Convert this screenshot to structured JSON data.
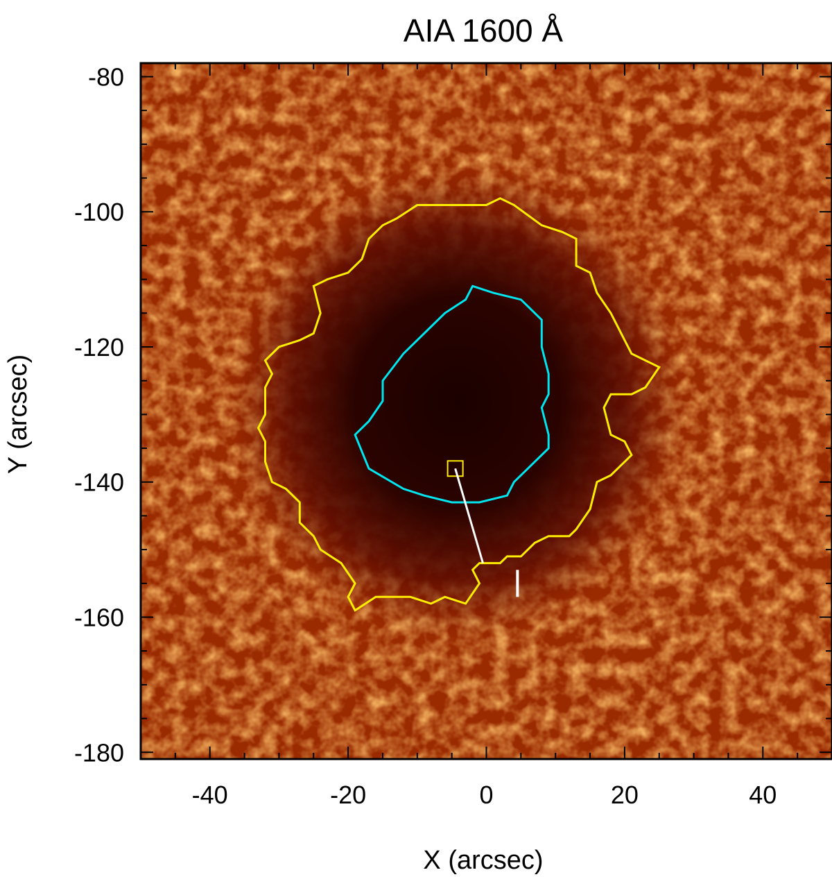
{
  "chart_data": {
    "type": "heatmap",
    "title": "AIA 1600 Å",
    "xlabel": "X (arcsec)",
    "ylabel": "Y (arcsec)",
    "xlim": [
      -50,
      50
    ],
    "ylim": [
      -181,
      -78
    ],
    "x_ticks": [
      -40,
      -20,
      0,
      20,
      40
    ],
    "y_ticks": [
      -80,
      -100,
      -120,
      -140,
      -160,
      -180
    ],
    "colormap": "red-temperature",
    "colors": {
      "umbra_contour": "#00e6f0",
      "penumbra_contour": "#ffee00",
      "marker_box": "#ffee00",
      "marker_line": "#ffffff",
      "background_low": "#1e0200",
      "background_high": "#ffc060"
    },
    "marker_box": {
      "x": -4.5,
      "y": -138
    },
    "marker_line": {
      "x0": -4.5,
      "y0": -138,
      "x1": -0.5,
      "y1": -152
    },
    "marker_tick": {
      "x0": 4.5,
      "y0": -153,
      "x1": 4.5,
      "y1": -157
    },
    "umbra_contour": [
      [
        -2,
        -111
      ],
      [
        1,
        -112
      ],
      [
        5,
        -113
      ],
      [
        8,
        -116
      ],
      [
        8,
        -120
      ],
      [
        9,
        -124
      ],
      [
        9,
        -127
      ],
      [
        8,
        -129
      ],
      [
        9,
        -133
      ],
      [
        9,
        -135
      ],
      [
        6,
        -138
      ],
      [
        4,
        -140
      ],
      [
        3,
        -142
      ],
      [
        -1,
        -143
      ],
      [
        -5,
        -143
      ],
      [
        -9,
        -142
      ],
      [
        -12,
        -141
      ],
      [
        -17,
        -138
      ],
      [
        -19,
        -133
      ],
      [
        -17,
        -131
      ],
      [
        -15,
        -128
      ],
      [
        -15,
        -125
      ],
      [
        -12,
        -121
      ],
      [
        -9,
        -118
      ],
      [
        -6,
        -115
      ],
      [
        -3,
        -113
      ],
      [
        -2,
        -111
      ]
    ],
    "penumbra_contour": [
      [
        -10,
        -99
      ],
      [
        -5,
        -99
      ],
      [
        0,
        -99
      ],
      [
        2,
        -98
      ],
      [
        4,
        -99
      ],
      [
        8,
        -102
      ],
      [
        11,
        -103
      ],
      [
        13,
        -104
      ],
      [
        13,
        -108
      ],
      [
        15,
        -109
      ],
      [
        16,
        -112
      ],
      [
        18,
        -115
      ],
      [
        20,
        -119
      ],
      [
        21,
        -121
      ],
      [
        25,
        -123
      ],
      [
        23,
        -126
      ],
      [
        21,
        -127
      ],
      [
        18,
        -127
      ],
      [
        17,
        -129
      ],
      [
        18,
        -133
      ],
      [
        20,
        -134
      ],
      [
        21,
        -136
      ],
      [
        19,
        -138
      ],
      [
        18,
        -139
      ],
      [
        16,
        -140
      ],
      [
        15,
        -144
      ],
      [
        13,
        -147
      ],
      [
        12,
        -148
      ],
      [
        9,
        -148
      ],
      [
        7,
        -149
      ],
      [
        5,
        -151
      ],
      [
        3,
        -151
      ],
      [
        2,
        -152
      ],
      [
        -1,
        -152
      ],
      [
        -2,
        -153
      ],
      [
        -1,
        -155
      ],
      [
        -3,
        -158
      ],
      [
        -6,
        -157
      ],
      [
        -8,
        -158
      ],
      [
        -11,
        -157
      ],
      [
        -13,
        -157
      ],
      [
        -16,
        -157
      ],
      [
        -19,
        -159
      ],
      [
        -20,
        -157
      ],
      [
        -19,
        -155
      ],
      [
        -21,
        -152
      ],
      [
        -24,
        -150
      ],
      [
        -25,
        -148
      ],
      [
        -27,
        -146
      ],
      [
        -27,
        -143
      ],
      [
        -29,
        -141
      ],
      [
        -31,
        -140
      ],
      [
        -32,
        -137
      ],
      [
        -32,
        -134
      ],
      [
        -33,
        -132
      ],
      [
        -32,
        -130
      ],
      [
        -32,
        -126
      ],
      [
        -31,
        -124
      ],
      [
        -32,
        -122
      ],
      [
        -30,
        -120
      ],
      [
        -27,
        -119
      ],
      [
        -25,
        -118
      ],
      [
        -24,
        -115
      ],
      [
        -25,
        -111
      ],
      [
        -23,
        -110
      ],
      [
        -20,
        -109
      ],
      [
        -18,
        -107
      ],
      [
        -17,
        -104
      ],
      [
        -15,
        -102
      ],
      [
        -13,
        -101
      ],
      [
        -10,
        -99
      ]
    ]
  }
}
